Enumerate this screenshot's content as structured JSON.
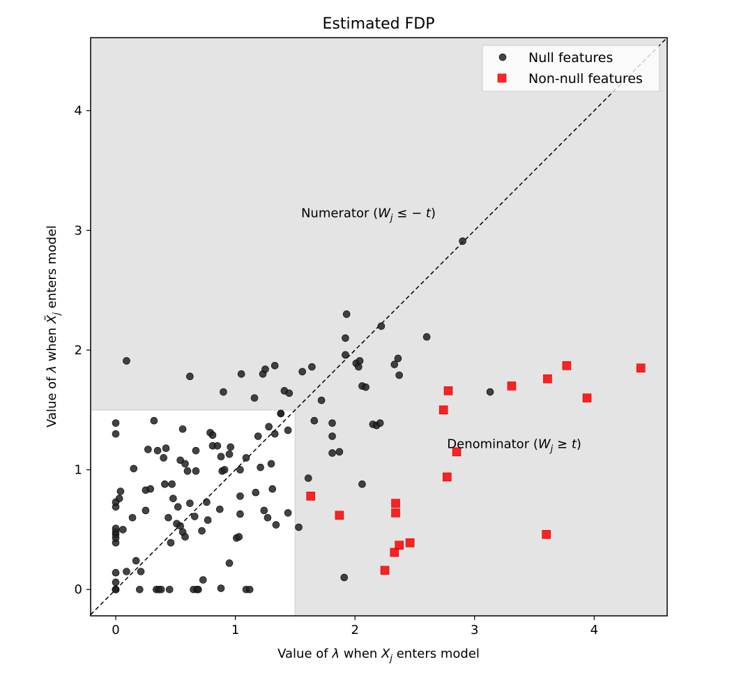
{
  "chart_data": {
    "type": "scatter",
    "title": "Estimated FDP",
    "xlabel": {
      "prefix": "Value of ",
      "lambda": "λ",
      "mid": " when ",
      "var": "X",
      "sub": "j",
      "suffix": " enters model"
    },
    "ylabel": {
      "prefix": "Value of ",
      "lambda": "λ",
      "mid": " when ",
      "var": "X̃",
      "sub": "j",
      "suffix": " enters model"
    },
    "xlim": [
      -0.21,
      4.61
    ],
    "ylim": [
      -0.22,
      4.61
    ],
    "xticks": [
      "0",
      "1",
      "2",
      "3",
      "4"
    ],
    "yticks": [
      "0",
      "1",
      "2",
      "3",
      "4"
    ],
    "threshold": 1.5,
    "shading": {
      "color": "#e4e4e4"
    },
    "diagonal": {
      "style": "dashed",
      "color": "#000000"
    },
    "legend": {
      "placement": "top-right"
    },
    "annotations": {
      "numerator": {
        "text": "Numerator (",
        "W": "W",
        "sub": "j",
        "rel": " ≤ − ",
        "t": "t",
        "close": ")",
        "x": 1.55,
        "y": 3.11
      },
      "denominator": {
        "text": "Denominator (",
        "W": "W",
        "sub": "j",
        "rel": " ≥ ",
        "t": "t",
        "close": ")",
        "x": 2.77,
        "y": 1.18
      }
    },
    "series": [
      {
        "name": "Null features",
        "marker": "circle",
        "color": "#222222",
        "points": [
          [
            0.0,
            0.0
          ],
          [
            0.0,
            0.0
          ],
          [
            0.0,
            0.0
          ],
          [
            0.0,
            0.0
          ],
          [
            0.0,
            0.0
          ],
          [
            0.0,
            0.06
          ],
          [
            0.0,
            0.14
          ],
          [
            0.0,
            0.39
          ],
          [
            0.0,
            0.43
          ],
          [
            0.0,
            0.46
          ],
          [
            0.0,
            0.48
          ],
          [
            0.0,
            0.51
          ],
          [
            0.0,
            0.69
          ],
          [
            0.0,
            0.73
          ],
          [
            0.0,
            1.3
          ],
          [
            0.0,
            1.39
          ],
          [
            0.03,
            0.76
          ],
          [
            0.04,
            0.82
          ],
          [
            0.06,
            0.5
          ],
          [
            0.09,
            0.15
          ],
          [
            0.09,
            1.91
          ],
          [
            0.14,
            0.6
          ],
          [
            0.15,
            1.01
          ],
          [
            0.17,
            0.24
          ],
          [
            0.2,
            0.0
          ],
          [
            0.21,
            0.15
          ],
          [
            0.25,
            0.66
          ],
          [
            0.25,
            0.83
          ],
          [
            0.27,
            1.17
          ],
          [
            0.29,
            0.84
          ],
          [
            0.32,
            1.41
          ],
          [
            0.34,
            0.0
          ],
          [
            0.35,
            1.16
          ],
          [
            0.36,
            0.0
          ],
          [
            0.38,
            0.0
          ],
          [
            0.4,
            1.1
          ],
          [
            0.41,
            0.88
          ],
          [
            0.42,
            1.18
          ],
          [
            0.44,
            0.6
          ],
          [
            0.45,
            0.0
          ],
          [
            0.46,
            0.39
          ],
          [
            0.47,
            0.88
          ],
          [
            0.48,
            0.76
          ],
          [
            0.51,
            0.55
          ],
          [
            0.52,
            0.69
          ],
          [
            0.54,
            0.53
          ],
          [
            0.54,
            1.08
          ],
          [
            0.56,
            1.34
          ],
          [
            0.56,
            0.48
          ],
          [
            0.58,
            1.05
          ],
          [
            0.58,
            0.44
          ],
          [
            0.6,
            0.99
          ],
          [
            0.62,
            0.72
          ],
          [
            0.62,
            1.78
          ],
          [
            0.65,
            0.0
          ],
          [
            0.66,
            0.61
          ],
          [
            0.67,
            0.99
          ],
          [
            0.67,
            1.16
          ],
          [
            0.68,
            0.0
          ],
          [
            0.69,
            0.0
          ],
          [
            0.73,
            0.08
          ],
          [
            0.72,
            0.49
          ],
          [
            0.76,
            0.73
          ],
          [
            0.77,
            0.58
          ],
          [
            0.79,
            1.31
          ],
          [
            0.81,
            1.2
          ],
          [
            0.81,
            1.29
          ],
          [
            0.85,
            1.2
          ],
          [
            0.87,
            0.67
          ],
          [
            0.88,
            1.11
          ],
          [
            0.88,
            0.01
          ],
          [
            0.89,
            0.99
          ],
          [
            0.9,
            1.65
          ],
          [
            0.91,
            1.0
          ],
          [
            0.95,
            1.13
          ],
          [
            0.95,
            0.22
          ],
          [
            0.96,
            1.19
          ],
          [
            1.01,
            0.43
          ],
          [
            1.03,
            0.44
          ],
          [
            1.04,
            0.78
          ],
          [
            1.04,
            1.0
          ],
          [
            1.04,
            0.63
          ],
          [
            1.05,
            1.8
          ],
          [
            1.09,
            1.1
          ],
          [
            1.09,
            0.0
          ],
          [
            1.12,
            0.0
          ],
          [
            1.16,
            1.6
          ],
          [
            1.17,
            0.81
          ],
          [
            1.19,
            1.28
          ],
          [
            1.21,
            1.02
          ],
          [
            1.23,
            1.8
          ],
          [
            1.24,
            0.66
          ],
          [
            1.25,
            1.84
          ],
          [
            1.27,
            0.6
          ],
          [
            1.28,
            1.36
          ],
          [
            1.3,
            1.05
          ],
          [
            1.31,
            0.84
          ],
          [
            1.33,
            1.87
          ],
          [
            1.33,
            1.3
          ],
          [
            1.34,
            0.54
          ],
          [
            1.38,
            1.47
          ],
          [
            1.38,
            1.47
          ],
          [
            1.41,
            1.66
          ],
          [
            1.44,
            1.33
          ],
          [
            1.45,
            1.64
          ],
          [
            1.44,
            0.64
          ],
          [
            1.53,
            0.52
          ],
          [
            1.56,
            1.82
          ],
          [
            1.61,
            0.93
          ],
          [
            1.64,
            1.86
          ],
          [
            1.66,
            1.41
          ],
          [
            1.72,
            1.58
          ],
          [
            1.81,
            1.14
          ],
          [
            1.81,
            1.39
          ],
          [
            1.81,
            1.28
          ],
          [
            1.87,
            1.15
          ],
          [
            1.91,
            0.1
          ],
          [
            1.92,
            2.1
          ],
          [
            1.92,
            1.96
          ],
          [
            1.93,
            2.3
          ],
          [
            2.01,
            1.89
          ],
          [
            2.03,
            1.86
          ],
          [
            2.04,
            1.91
          ],
          [
            2.06,
            1.7
          ],
          [
            2.06,
            0.88
          ],
          [
            2.09,
            1.69
          ],
          [
            2.15,
            1.38
          ],
          [
            2.18,
            1.37
          ],
          [
            2.21,
            1.39
          ],
          [
            2.22,
            2.2
          ],
          [
            2.33,
            1.88
          ],
          [
            2.36,
            1.93
          ],
          [
            2.37,
            1.79
          ],
          [
            2.6,
            2.11
          ],
          [
            2.9,
            2.91
          ],
          [
            3.13,
            1.65
          ]
        ]
      },
      {
        "name": "Non-null features",
        "marker": "square",
        "color": "#ff0000",
        "points": [
          [
            1.63,
            0.78
          ],
          [
            1.87,
            0.62
          ],
          [
            2.25,
            0.16
          ],
          [
            2.33,
            0.31
          ],
          [
            2.34,
            0.72
          ],
          [
            2.34,
            0.64
          ],
          [
            2.37,
            0.37
          ],
          [
            2.46,
            0.39
          ],
          [
            2.74,
            1.5
          ],
          [
            2.77,
            0.94
          ],
          [
            2.78,
            1.66
          ],
          [
            2.85,
            1.15
          ],
          [
            3.31,
            1.7
          ],
          [
            3.6,
            0.46
          ],
          [
            3.61,
            1.76
          ],
          [
            3.77,
            1.87
          ],
          [
            3.94,
            1.6
          ],
          [
            4.39,
            1.85
          ]
        ]
      }
    ]
  }
}
